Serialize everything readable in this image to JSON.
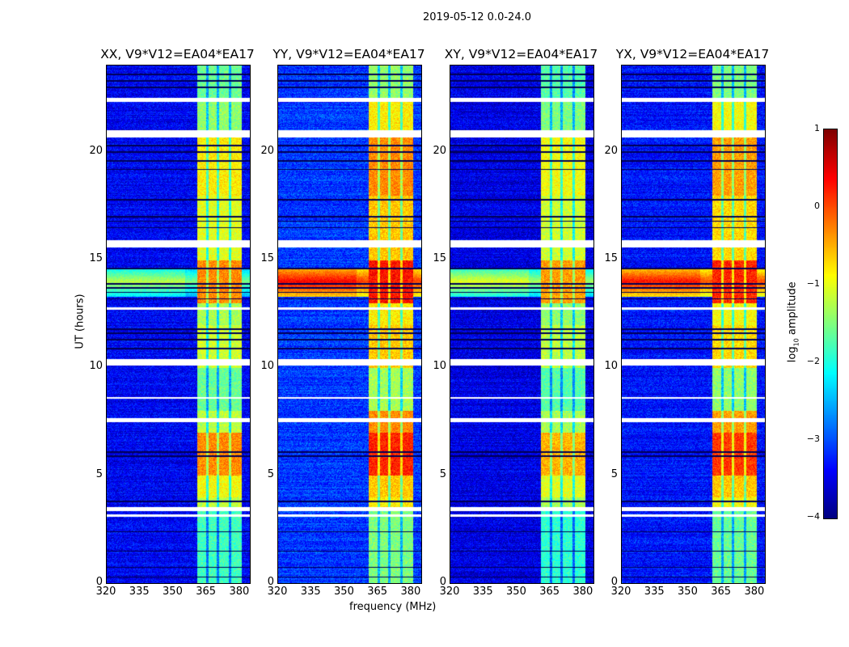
{
  "suptitle": "2019-05-12 0.0-24.0",
  "xlabel": "frequency (MHz)",
  "ylabel": "UT (hours)",
  "colorbar": {
    "label_main": "log",
    "label_sub": "10",
    "label_rest": " amplitude",
    "ticks": [
      "1",
      "0",
      "−1",
      "−2",
      "−3",
      "−4"
    ],
    "range": [
      -4,
      1
    ],
    "colormap": "jet"
  },
  "chart_data": {
    "type": "heatmap",
    "title": "2019-05-12 0.0-24.0",
    "xlabel": "frequency (MHz)",
    "ylabel": "UT (hours)",
    "xlim": [
      320,
      384.4
    ],
    "ylim": [
      0,
      24
    ],
    "x_ticks": [
      "320",
      "335",
      "350",
      "365",
      "380"
    ],
    "x_tick_values": [
      320,
      335,
      350,
      365,
      380
    ],
    "y_ticks": [
      "0",
      "5",
      "10",
      "15",
      "20"
    ],
    "y_tick_values": [
      0,
      5,
      10,
      15,
      20
    ],
    "band_mhz": [
      360.7,
      380.4
    ],
    "band_gaps_mhz": [
      365.2,
      369.8,
      375.3
    ],
    "flagged_hours": [
      [
        3.1,
        3.2
      ],
      [
        3.35,
        3.55
      ],
      [
        7.5,
        7.65
      ],
      [
        8.55,
        8.65
      ],
      [
        10.1,
        10.4
      ],
      [
        12.7,
        12.8
      ],
      [
        15.6,
        15.9
      ],
      [
        20.7,
        21.0
      ],
      [
        22.35,
        22.5
      ]
    ],
    "dark_line_hours": [
      0.3,
      0.75,
      1.5,
      2.4,
      3.8,
      5.9,
      6.1,
      10.9,
      11.3,
      11.6,
      11.8,
      13.2,
      13.5,
      13.7,
      13.9,
      14.6,
      16.5,
      16.8,
      17.0,
      17.8,
      19.2,
      19.6,
      20.0,
      20.3,
      23.0,
      23.3,
      23.6
    ],
    "level_hours": [
      0,
      3,
      3.5,
      4,
      5,
      7,
      8,
      10,
      12,
      13,
      15,
      18,
      21,
      22.5,
      24
    ],
    "panels": [
      {
        "title": "XX, V9*V12=EA04*EA17",
        "background": -3.4,
        "band_levels": [
          -1.8,
          -1.8,
          -1.2,
          -0.9,
          -0.3,
          -1.2,
          -1.6,
          -1.1,
          -1.3,
          -0.3,
          -1.0,
          -0.8,
          -1.4,
          -1.6
        ],
        "broadband_14h": -1.2
      },
      {
        "title": "YY, V9*V12=EA04*EA17",
        "background": -3.1,
        "band_levels": [
          -1.5,
          -1.5,
          -0.8,
          -0.6,
          0.2,
          -0.3,
          -1.3,
          -0.6,
          -0.8,
          0.3,
          -0.6,
          -0.3,
          -0.8,
          -1.4
        ],
        "broadband_14h": 0.4
      },
      {
        "title": "XY, V9*V12=EA04*EA17",
        "background": -3.5,
        "band_levels": [
          -1.9,
          -1.9,
          -1.3,
          -1.0,
          -0.5,
          -1.3,
          -1.7,
          -1.2,
          -1.4,
          -0.4,
          -1.1,
          -0.9,
          -1.5,
          -1.7
        ],
        "broadband_14h": -1.0
      },
      {
        "title": "YX, V9*V12=EA04*EA17",
        "background": -3.3,
        "band_levels": [
          -1.6,
          -1.6,
          -0.9,
          -0.6,
          0.1,
          -0.4,
          -1.4,
          -0.7,
          -0.9,
          0.2,
          -0.7,
          -0.4,
          -0.9,
          -1.5
        ],
        "broadband_14h": 0.3
      }
    ]
  }
}
